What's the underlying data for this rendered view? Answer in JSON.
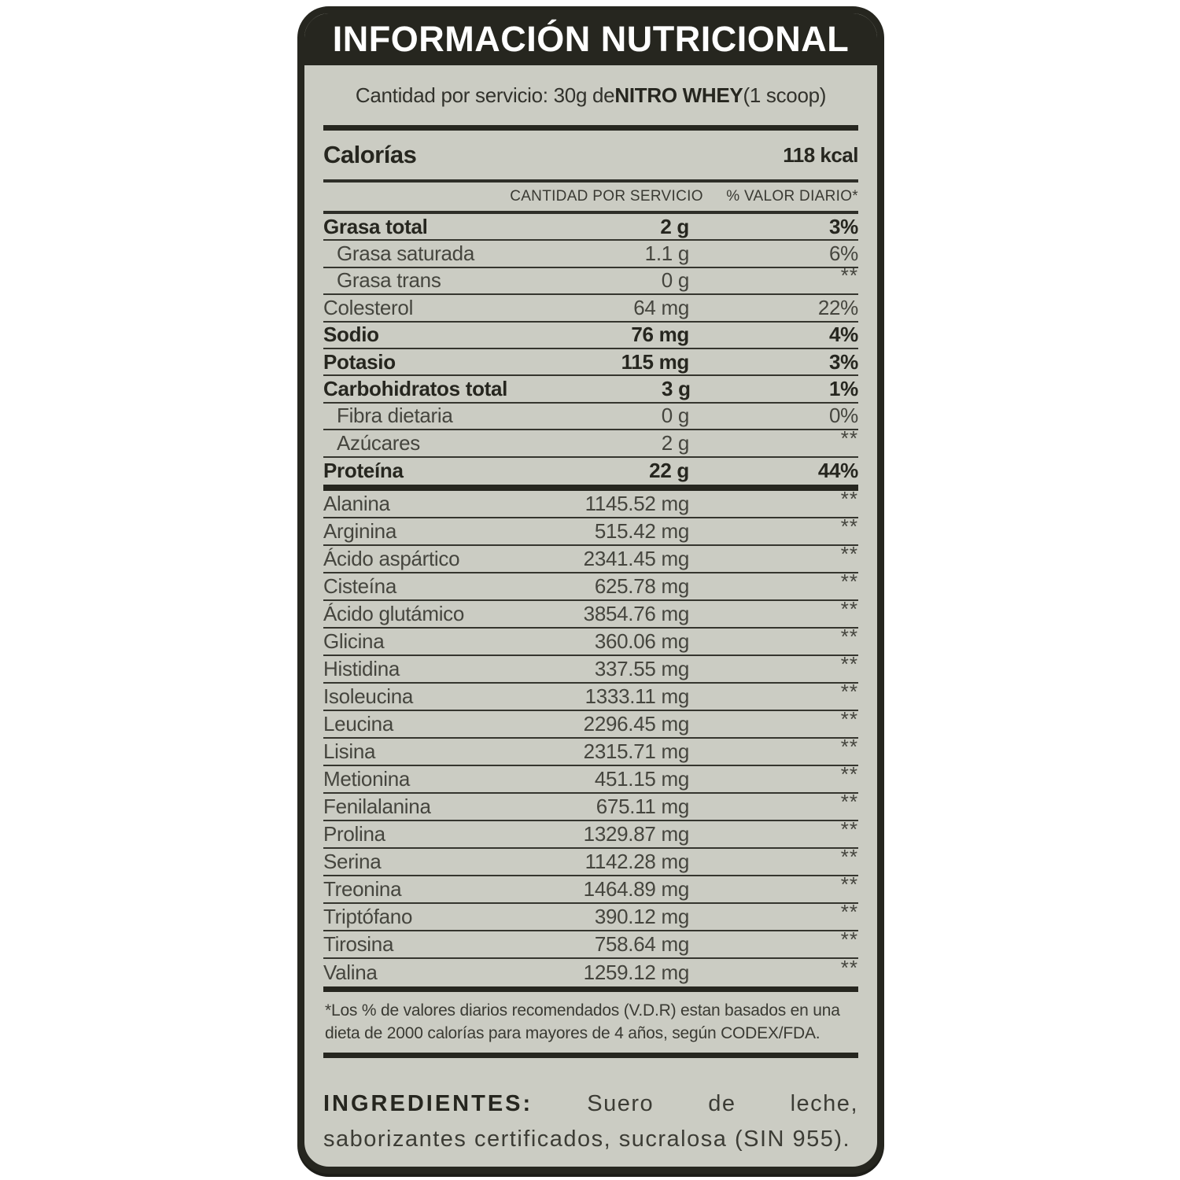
{
  "label": {
    "title": "INFORMACIÓN NUTRICIONAL",
    "serving": {
      "prefix": "Cantidad por servicio: 30g de ",
      "product": "NITRO WHEY",
      "suffix": " (1 scoop)"
    },
    "calories": {
      "name": "Calorías",
      "value": "118 kcal"
    },
    "columns": {
      "amount": "CANTIDAD POR SERVICIO",
      "daily_value": "% VALOR DIARIO*"
    },
    "nutrients": [
      {
        "name": "Grasa total",
        "amount": "2 g",
        "dv": "3%",
        "bold": true,
        "indent": false
      },
      {
        "name": "Grasa saturada",
        "amount": "1.1 g",
        "dv": "6%",
        "bold": false,
        "indent": true
      },
      {
        "name": "Grasa trans",
        "amount": "0 g",
        "dv": "**",
        "bold": false,
        "indent": true
      },
      {
        "name": "Colesterol",
        "amount": "64 mg",
        "dv": "22%",
        "bold": false,
        "indent": false
      },
      {
        "name": "Sodio",
        "amount": "76 mg",
        "dv": "4%",
        "bold": true,
        "indent": false
      },
      {
        "name": "Potasio",
        "amount": "115 mg",
        "dv": "3%",
        "bold": true,
        "indent": false
      },
      {
        "name": "Carbohidratos total",
        "amount": "3 g",
        "dv": "1%",
        "bold": true,
        "indent": false
      },
      {
        "name": "Fibra dietaria",
        "amount": "0 g",
        "dv": "0%",
        "bold": false,
        "indent": true
      },
      {
        "name": "Azúcares",
        "amount": "2 g",
        "dv": "**",
        "bold": false,
        "indent": true
      },
      {
        "name": "Proteína",
        "amount": "22 g",
        "dv": "44%",
        "bold": true,
        "indent": false
      }
    ],
    "amino_acids": [
      {
        "name": "Alanina",
        "amount": "1145.52 mg",
        "dv": "**"
      },
      {
        "name": "Arginina",
        "amount": "515.42 mg",
        "dv": "**"
      },
      {
        "name": "Ácido aspártico",
        "amount": "2341.45 mg",
        "dv": "**"
      },
      {
        "name": "Cisteína",
        "amount": "625.78 mg",
        "dv": "**"
      },
      {
        "name": "Ácido glutámico",
        "amount": "3854.76 mg",
        "dv": "**"
      },
      {
        "name": "Glicina",
        "amount": "360.06 mg",
        "dv": "**"
      },
      {
        "name": "Histidina",
        "amount": "337.55 mg",
        "dv": "**"
      },
      {
        "name": "Isoleucina",
        "amount": "1333.11 mg",
        "dv": "**"
      },
      {
        "name": "Leucina",
        "amount": "2296.45 mg",
        "dv": "**"
      },
      {
        "name": "Lisina",
        "amount": "2315.71 mg",
        "dv": "**"
      },
      {
        "name": "Metionina",
        "amount": "451.15 mg",
        "dv": "**"
      },
      {
        "name": "Fenilalanina",
        "amount": "675.11 mg",
        "dv": "**"
      },
      {
        "name": "Prolina",
        "amount": "1329.87 mg",
        "dv": "**"
      },
      {
        "name": "Serina",
        "amount": "1142.28 mg",
        "dv": "**"
      },
      {
        "name": "Treonina",
        "amount": "1464.89 mg",
        "dv": "**"
      },
      {
        "name": "Triptófano",
        "amount": "390.12 mg",
        "dv": "**"
      },
      {
        "name": "Tirosina",
        "amount": "758.64 mg",
        "dv": "**"
      },
      {
        "name": "Valina",
        "amount": "1259.12 mg",
        "dv": "**"
      }
    ],
    "footnote": "*Los % de valores diarios recomendados (V.D.R) estan basados en una dieta de 2000 calorías para mayores de 4 años, según CODEX/FDA.",
    "ingredients": {
      "label": "INGREDIENTES:",
      "text": " Suero de leche, saborizantes certificados, sucralosa (SIN 955)."
    },
    "colors": {
      "background": "#cbccc3",
      "ink": "#26261f",
      "text": "#3c3c35"
    }
  }
}
